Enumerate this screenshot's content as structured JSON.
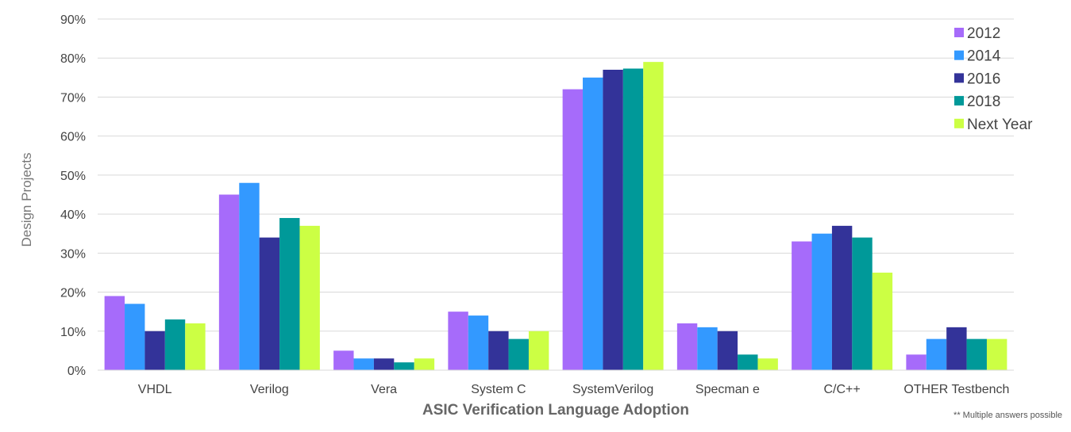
{
  "chart_data": {
    "type": "bar",
    "xlabel": "ASIC Verification Language Adoption",
    "ylabel": "Design Projects",
    "ylim": [
      0,
      90
    ],
    "ytick_values": [
      0,
      10,
      20,
      30,
      40,
      50,
      60,
      70,
      80,
      90
    ],
    "ytick_labels": [
      "0%",
      "10%",
      "20%",
      "30%",
      "40%",
      "50%",
      "60%",
      "70%",
      "80%",
      "90%"
    ],
    "grid": true,
    "legend_position": "top-right",
    "categories": [
      "VHDL",
      "Verilog",
      "Vera",
      "System C",
      "SystemVerilog",
      "Specman e",
      "C/C++",
      "OTHER Testbench"
    ],
    "series": [
      {
        "name": "2012",
        "color": "#a66bfa",
        "values": [
          19,
          45,
          5,
          15,
          72,
          12,
          33,
          4
        ]
      },
      {
        "name": "2014",
        "color": "#3399ff",
        "values": [
          17,
          48,
          3,
          14,
          75,
          11,
          35,
          8
        ]
      },
      {
        "name": "2016",
        "color": "#333399",
        "values": [
          10,
          34,
          3,
          10,
          77,
          10,
          37,
          11
        ]
      },
      {
        "name": "2018",
        "color": "#009999",
        "values": [
          13,
          39,
          2,
          8,
          77.3,
          4,
          34,
          8
        ]
      },
      {
        "name": "Next Year",
        "color": "#ccff44",
        "values": [
          12,
          37,
          3,
          10,
          79,
          3,
          25,
          8
        ]
      }
    ],
    "footnote": "** Multiple answers possible"
  }
}
